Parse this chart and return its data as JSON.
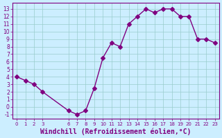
{
  "x": [
    0,
    1,
    2,
    3,
    6,
    7,
    8,
    9,
    10,
    11,
    12,
    13,
    14,
    15,
    16,
    17,
    18,
    19,
    20,
    21,
    22,
    23
  ],
  "y": [
    4.0,
    3.5,
    3.0,
    2.0,
    -0.5,
    -1.0,
    -0.5,
    2.5,
    6.5,
    8.5,
    8.0,
    11.0,
    12.0,
    13.0,
    12.5,
    13.0,
    13.0,
    12.0,
    12.0,
    9.0,
    9.0,
    8.5
  ],
  "line_color": "#800080",
  "marker": "D",
  "marker_size": 3,
  "background_color": "#cceeff",
  "grid_color": "#99cccc",
  "xlabel": "Windchill (Refroidissement éolien,°C)",
  "xlabel_fontsize": 7.0,
  "yticks": [
    -1,
    0,
    1,
    2,
    3,
    4,
    5,
    6,
    7,
    8,
    9,
    10,
    11,
    12,
    13
  ],
  "xticks": [
    0,
    1,
    2,
    3,
    6,
    7,
    8,
    9,
    10,
    11,
    12,
    13,
    14,
    15,
    16,
    17,
    18,
    19,
    20,
    21,
    22,
    23
  ],
  "ylim": [
    -1.6,
    13.8
  ],
  "xlim": [
    -0.5,
    23.5
  ]
}
